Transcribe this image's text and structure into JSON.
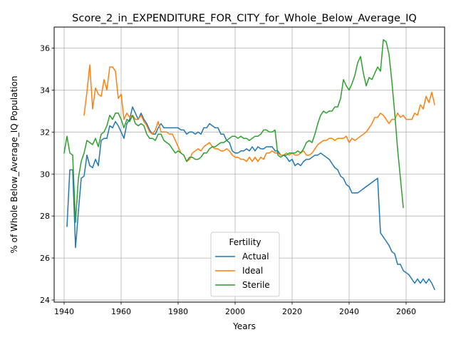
{
  "chart_data": {
    "type": "line",
    "title": "Score_2_in_EXPENDITURE_FOR_CITY_for_Whole_Below_Average_IQ",
    "xlabel": "Years",
    "ylabel": "% of Whole Below_Average_IQ Population",
    "xlim": [
      1936.5,
      2073.5
    ],
    "ylim": [
      23.9,
      37.0
    ],
    "xticks": [
      1940,
      1960,
      1980,
      2000,
      2020,
      2040,
      2060
    ],
    "yticks": [
      24,
      26,
      28,
      30,
      32,
      34,
      36
    ],
    "grid": true,
    "legend": {
      "title": "Fertility",
      "placement": "lower center"
    },
    "series": [
      {
        "name": "Actual",
        "color": "#1f77b4",
        "x": [
          1941,
          1942,
          1943,
          1944,
          1945,
          1946,
          1947,
          1948,
          1949,
          1950,
          1951,
          1952,
          1953,
          1954,
          1955,
          1956,
          1957,
          1958,
          1959,
          1960,
          1961,
          1962,
          1963,
          1964,
          1965,
          1966,
          1967,
          1968,
          1969,
          1970,
          1971,
          1972,
          1973,
          1974,
          1975,
          1976,
          1977,
          1978,
          1979,
          1980,
          1981,
          1982,
          1983,
          1984,
          1985,
          1986,
          1987,
          1988,
          1989,
          1990,
          1991,
          1992,
          1993,
          1994,
          1995,
          1996,
          1997,
          1998,
          1999,
          2000,
          2001,
          2002,
          2003,
          2004,
          2005,
          2006,
          2007,
          2008,
          2009,
          2010,
          2011,
          2012,
          2013,
          2014,
          2015,
          2016,
          2017,
          2018,
          2019,
          2020,
          2021,
          2022,
          2023,
          2024,
          2025,
          2026,
          2027,
          2028,
          2029,
          2030,
          2031,
          2032,
          2033,
          2034,
          2035,
          2036,
          2037,
          2038,
          2039,
          2040,
          2041,
          2042,
          2043,
          2044,
          2045,
          2046,
          2047,
          2048,
          2049,
          2050,
          2051,
          2052,
          2053,
          2054,
          2055,
          2056,
          2057,
          2058,
          2059,
          2060,
          2061,
          2062,
          2063,
          2064,
          2065,
          2066,
          2067,
          2068,
          2069,
          2070
        ],
        "values": [
          27.5,
          30.2,
          30.2,
          26.5,
          28.2,
          29.8,
          29.9,
          30.9,
          30.4,
          30.3,
          30.7,
          30.4,
          31.6,
          31.7,
          31.7,
          32.3,
          32.2,
          32.5,
          32.3,
          32.0,
          31.7,
          32.4,
          32.6,
          33.2,
          32.9,
          32.6,
          32.9,
          32.6,
          32.4,
          32.1,
          31.9,
          31.9,
          32.2,
          32.4,
          32.2,
          32.2,
          32.2,
          32.2,
          32.2,
          32.2,
          32.1,
          32.1,
          31.9,
          32.0,
          32.0,
          31.9,
          32.0,
          31.9,
          32.2,
          32.2,
          32.4,
          32.3,
          32.2,
          32.2,
          31.9,
          31.9,
          31.6,
          31.5,
          31.1,
          31.0,
          31.0,
          31.1,
          31.1,
          31.2,
          31.1,
          31.3,
          31.1,
          31.3,
          31.2,
          31.2,
          31.3,
          31.3,
          31.3,
          31.1,
          31.1,
          30.9,
          30.9,
          30.8,
          30.6,
          30.7,
          30.4,
          30.5,
          30.4,
          30.6,
          30.7,
          30.7,
          30.8,
          30.9,
          30.9,
          31.0,
          30.9,
          30.8,
          30.7,
          30.5,
          30.3,
          30.2,
          29.9,
          29.8,
          29.5,
          29.4,
          29.1,
          29.1,
          29.1,
          29.2,
          29.3,
          29.4,
          29.5,
          29.6,
          29.7,
          29.8,
          27.2,
          27.0,
          26.8,
          26.6,
          26.3,
          26.2,
          25.7,
          25.7,
          25.4,
          25.3,
          25.2,
          25.0,
          24.8,
          25.0,
          24.8,
          25.0,
          24.8,
          25.0,
          24.8,
          24.5
        ]
      },
      {
        "name": "Ideal",
        "color": "#ff7f0e",
        "x": [
          1947,
          1948,
          1949,
          1950,
          1951,
          1952,
          1953,
          1954,
          1955,
          1956,
          1957,
          1958,
          1959,
          1960,
          1961,
          1962,
          1963,
          1964,
          1965,
          1966,
          1967,
          1968,
          1969,
          1970,
          1971,
          1972,
          1973,
          1974,
          1975,
          1976,
          1977,
          1978,
          1979,
          1980,
          1981,
          1982,
          1983,
          1984,
          1985,
          1986,
          1987,
          1988,
          1989,
          1990,
          1991,
          1992,
          1993,
          1994,
          1995,
          1996,
          1997,
          1998,
          1999,
          2000,
          2001,
          2002,
          2003,
          2004,
          2005,
          2006,
          2007,
          2008,
          2009,
          2010,
          2011,
          2012,
          2013,
          2014,
          2015,
          2016,
          2017,
          2018,
          2019,
          2020,
          2021,
          2022,
          2023,
          2024,
          2025,
          2026,
          2027,
          2028,
          2029,
          2030,
          2031,
          2032,
          2033,
          2034,
          2035,
          2036,
          2037,
          2038,
          2039,
          2040,
          2041,
          2042,
          2043,
          2044,
          2045,
          2046,
          2047,
          2048,
          2049,
          2050,
          2051,
          2052,
          2053,
          2054,
          2055,
          2056,
          2057,
          2058,
          2059,
          2060,
          2061,
          2062,
          2063,
          2064,
          2065,
          2066,
          2067,
          2068,
          2069,
          2070
        ],
        "values": [
          32.8,
          33.9,
          35.2,
          33.1,
          34.1,
          33.8,
          33.7,
          34.5,
          34.0,
          35.1,
          35.1,
          34.9,
          33.6,
          33.8,
          32.6,
          32.9,
          32.7,
          32.8,
          32.6,
          32.6,
          32.8,
          32.5,
          32.3,
          32.0,
          31.9,
          32.1,
          32.5,
          32.0,
          32.0,
          32.0,
          31.9,
          31.9,
          31.6,
          31.3,
          31.0,
          30.9,
          30.6,
          30.7,
          31.0,
          31.1,
          31.2,
          31.1,
          31.3,
          31.4,
          31.5,
          31.3,
          31.2,
          31.2,
          31.1,
          31.1,
          31.2,
          31.1,
          30.9,
          30.8,
          30.8,
          30.7,
          30.7,
          30.6,
          30.8,
          30.6,
          30.8,
          30.6,
          30.8,
          30.7,
          31.0,
          31.0,
          31.1,
          31.0,
          31.0,
          30.9,
          30.9,
          31.0,
          30.9,
          31.0,
          30.9,
          30.9,
          31.0,
          31.1,
          30.9,
          30.9,
          31.0,
          31.2,
          31.4,
          31.5,
          31.6,
          31.6,
          31.7,
          31.7,
          31.6,
          31.7,
          31.7,
          31.7,
          31.8,
          31.5,
          31.7,
          31.6,
          31.7,
          31.8,
          31.9,
          32.0,
          32.2,
          32.4,
          32.7,
          32.7,
          32.9,
          32.8,
          32.6,
          32.4,
          32.6,
          32.6,
          32.9,
          32.7,
          32.8,
          32.6,
          32.6,
          32.6,
          32.9,
          32.8,
          33.3,
          33.1,
          33.7,
          33.4,
          33.9,
          33.3
        ]
      },
      {
        "name": "Sterile",
        "color": "#2ca02c",
        "x": [
          1940,
          1941,
          1942,
          1943,
          1944,
          1945,
          1946,
          1947,
          1948,
          1949,
          1950,
          1951,
          1952,
          1953,
          1954,
          1955,
          1956,
          1957,
          1958,
          1959,
          1960,
          1961,
          1962,
          1963,
          1964,
          1965,
          1966,
          1967,
          1968,
          1969,
          1970,
          1971,
          1972,
          1973,
          1974,
          1975,
          1976,
          1977,
          1978,
          1979,
          1980,
          1981,
          1982,
          1983,
          1984,
          1985,
          1986,
          1987,
          1988,
          1989,
          1990,
          1991,
          1992,
          1993,
          1994,
          1995,
          1996,
          1997,
          1998,
          1999,
          2000,
          2001,
          2002,
          2003,
          2004,
          2005,
          2006,
          2007,
          2008,
          2009,
          2010,
          2011,
          2012,
          2013,
          2014,
          2015,
          2016,
          2017,
          2018,
          2019,
          2020,
          2021,
          2022,
          2023,
          2024,
          2025,
          2026,
          2027,
          2028,
          2029,
          2030,
          2031,
          2032,
          2033,
          2034,
          2035,
          2036,
          2037,
          2038,
          2039,
          2040,
          2041,
          2042,
          2043,
          2044,
          2045,
          2046,
          2047,
          2048,
          2049,
          2050,
          2051,
          2052,
          2053,
          2054,
          2055,
          2056,
          2057,
          2058,
          2059
        ],
        "values": [
          31.0,
          31.8,
          31.0,
          30.9,
          27.7,
          29.8,
          30.6,
          31.0,
          31.6,
          31.5,
          31.4,
          31.7,
          31.3,
          31.9,
          32.0,
          32.3,
          32.8,
          32.6,
          32.9,
          32.9,
          32.6,
          32.2,
          32.6,
          32.5,
          32.8,
          32.4,
          32.3,
          32.4,
          32.3,
          31.9,
          31.7,
          31.7,
          31.6,
          31.9,
          31.9,
          31.6,
          31.5,
          31.4,
          31.2,
          31.0,
          31.1,
          31.0,
          30.9,
          30.6,
          30.8,
          30.8,
          30.7,
          30.7,
          30.8,
          31.0,
          31.0,
          31.2,
          31.3,
          31.3,
          31.4,
          31.5,
          31.5,
          31.6,
          31.7,
          31.8,
          31.8,
          31.7,
          31.8,
          31.7,
          31.7,
          31.6,
          31.7,
          31.8,
          31.8,
          31.9,
          32.1,
          32.1,
          32.0,
          32.0,
          32.1,
          30.9,
          30.8,
          30.9,
          30.9,
          31.0,
          31.0,
          31.0,
          31.1,
          31.0,
          31.2,
          31.5,
          31.6,
          31.5,
          31.9,
          32.4,
          32.8,
          33.0,
          32.9,
          33.0,
          33.0,
          33.2,
          33.2,
          33.6,
          34.5,
          34.2,
          34.0,
          34.3,
          34.7,
          35.3,
          35.6,
          34.8,
          34.2,
          34.6,
          34.5,
          34.8,
          35.1,
          34.9,
          36.4,
          36.3,
          35.7,
          34.4,
          32.9,
          31.2,
          29.8,
          28.4
        ]
      }
    ]
  }
}
